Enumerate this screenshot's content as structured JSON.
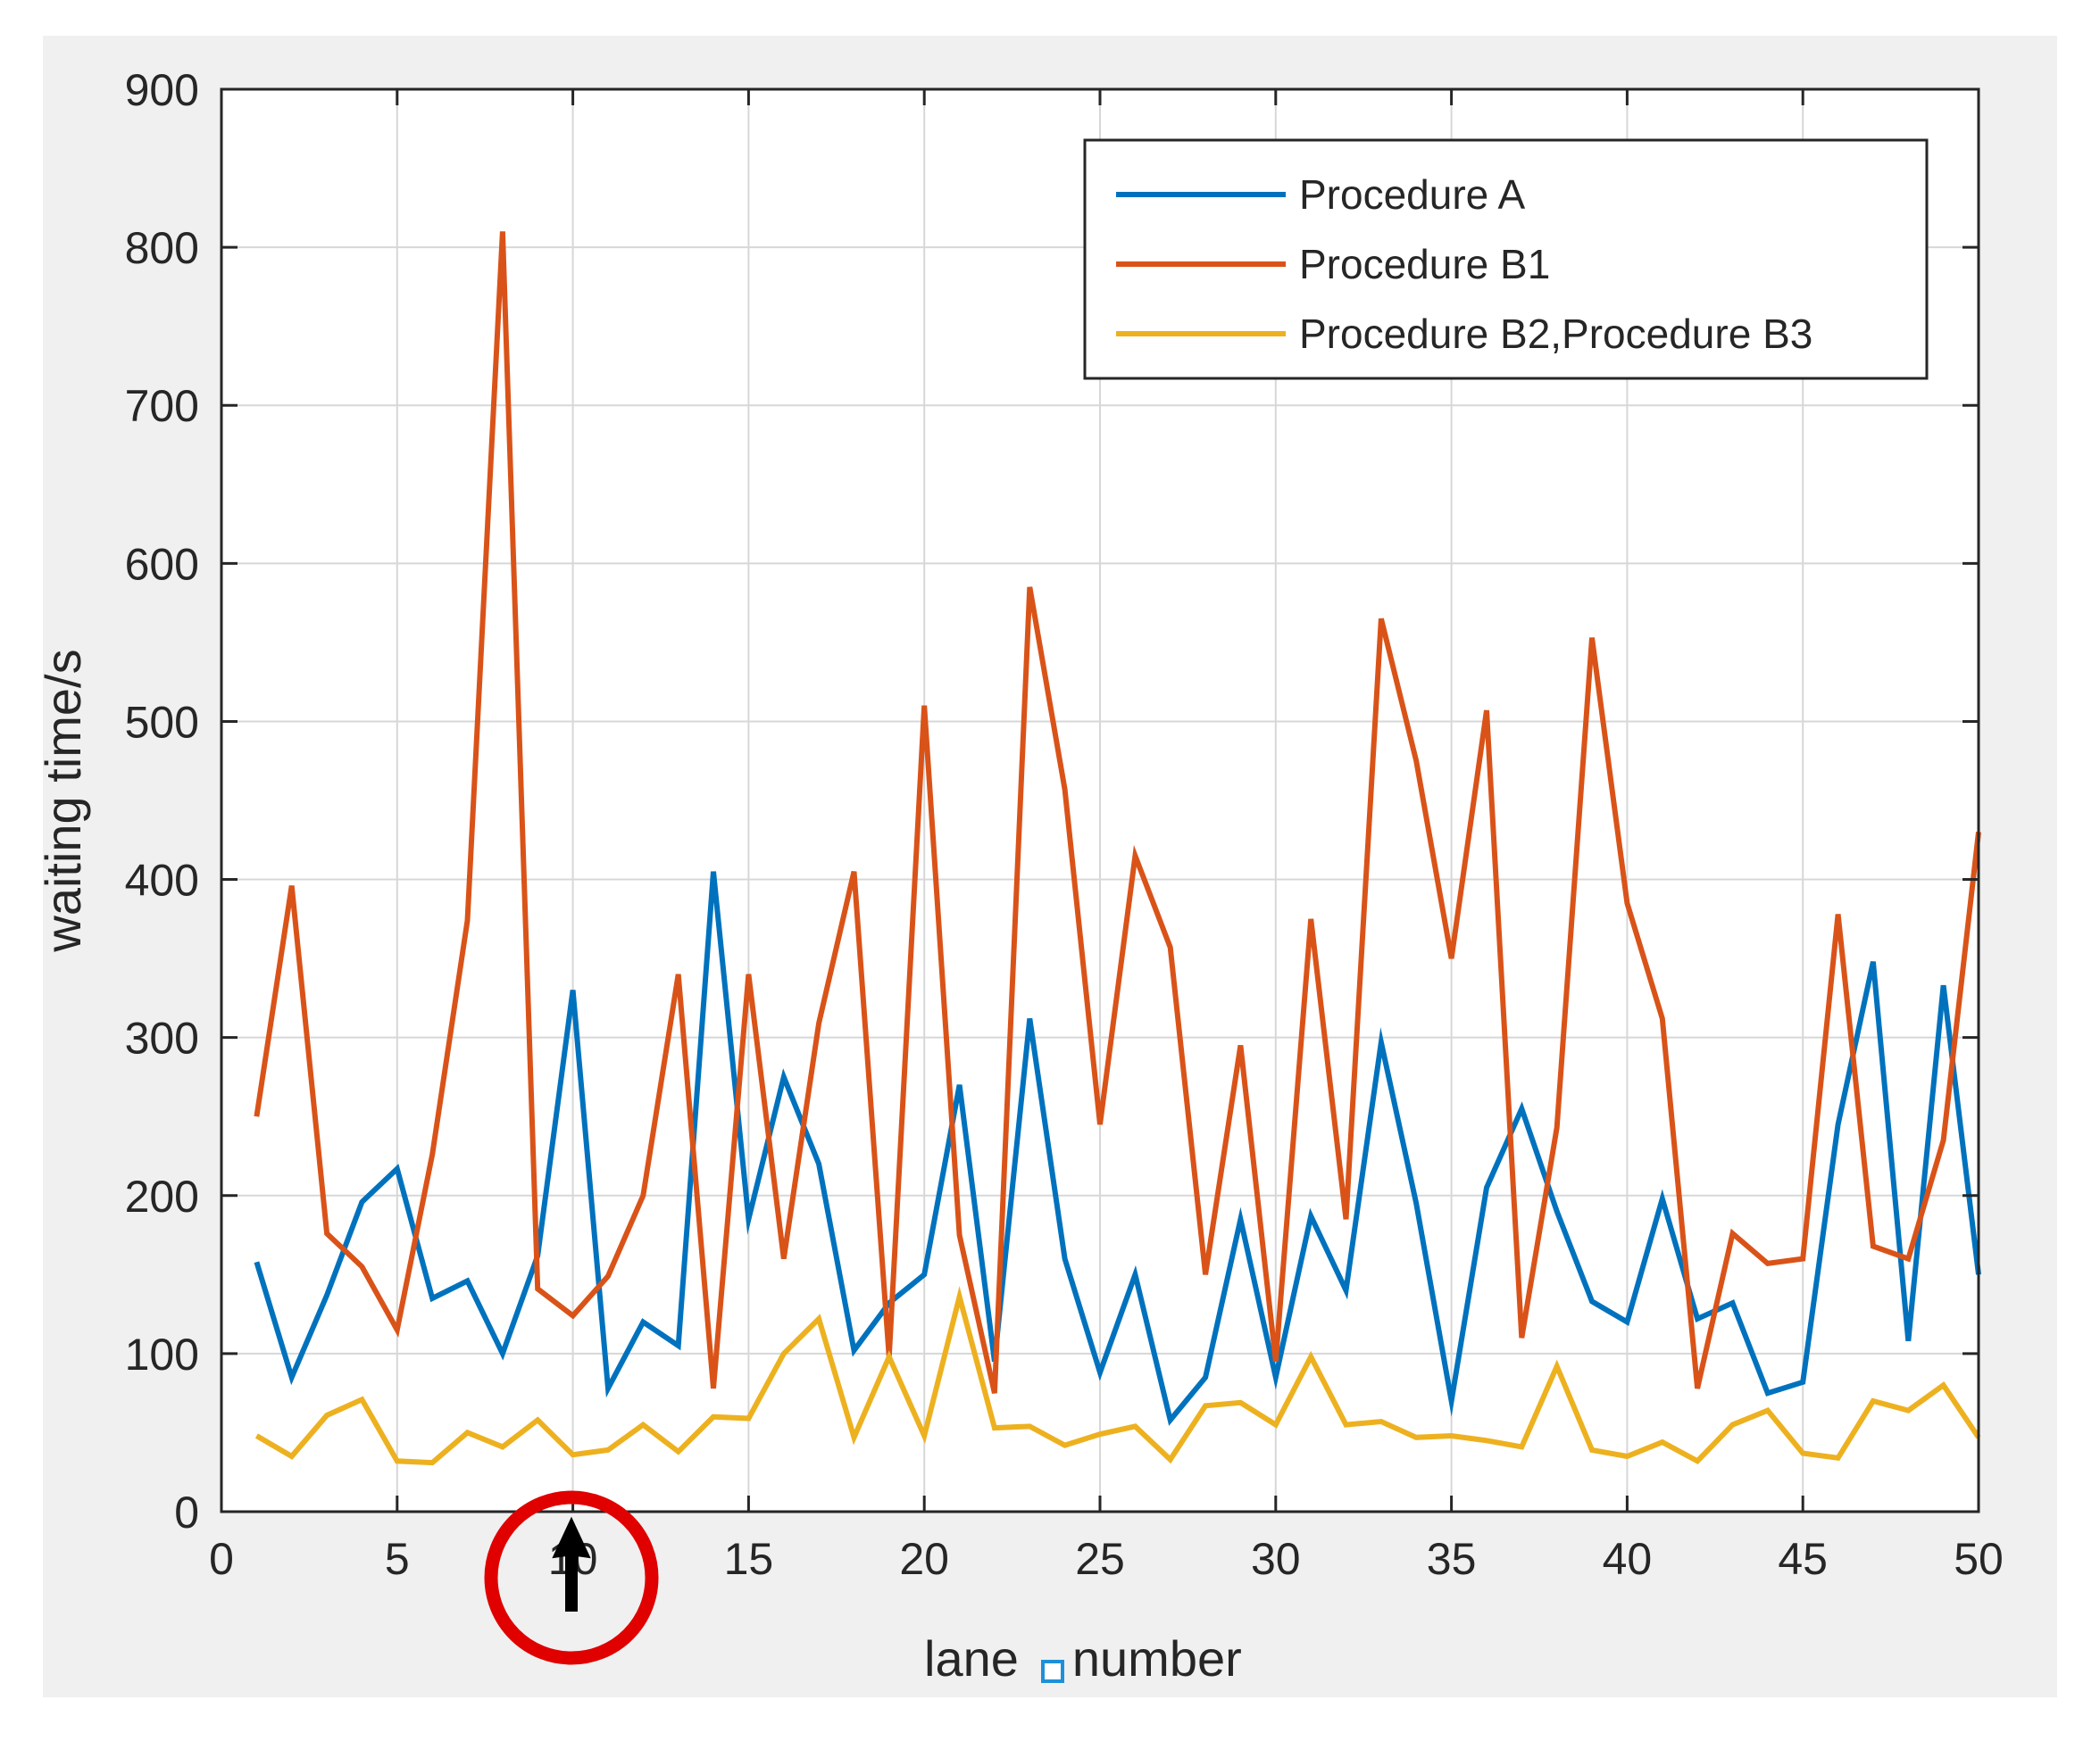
{
  "chart_data": {
    "type": "line",
    "title": "",
    "xlabel": "lane",
    "xlabel_suffix": "number",
    "ylabel": "waiting time/s",
    "xlim": [
      0,
      50
    ],
    "ylim": [
      0,
      900
    ],
    "x_ticks": [
      0,
      5,
      10,
      15,
      20,
      25,
      30,
      35,
      40,
      45,
      50
    ],
    "y_ticks": [
      0,
      100,
      200,
      300,
      400,
      500,
      600,
      700,
      800,
      900
    ],
    "grid": true,
    "legend_location": "top-right",
    "x": [
      1,
      2,
      3,
      4,
      5,
      6,
      7,
      8,
      9,
      10,
      11,
      12,
      13,
      14,
      15,
      16,
      17,
      18,
      19,
      20,
      21,
      22,
      23,
      24,
      25,
      26,
      27,
      28,
      29,
      30,
      31,
      32,
      33,
      34,
      35,
      36,
      37,
      38,
      39,
      40,
      41,
      42,
      43,
      44,
      45,
      46,
      47,
      48,
      49,
      50
    ],
    "series": [
      {
        "name": "Procedure A",
        "color": "#0072BD",
        "values": [
          158,
          85,
          137,
          196,
          217,
          135,
          146,
          100,
          162,
          330,
          78,
          120,
          105,
          405,
          185,
          275,
          220,
          102,
          132,
          150,
          270,
          95,
          312,
          160,
          88,
          150,
          58,
          85,
          185,
          85,
          187,
          140,
          297,
          195,
          70,
          205,
          255,
          190,
          133,
          120,
          198,
          122,
          132,
          75,
          82,
          245,
          348,
          108,
          333,
          150
        ]
      },
      {
        "name": "Procedure B1",
        "color": "#D95319",
        "values": [
          250,
          396,
          176,
          155,
          115,
          226,
          374,
          810,
          141,
          124,
          149,
          200,
          340,
          78,
          340,
          160,
          309,
          405,
          98,
          510,
          175,
          75,
          585,
          457,
          245,
          415,
          357,
          150,
          295,
          95,
          375,
          185,
          565,
          475,
          350,
          507,
          110,
          243,
          553,
          385,
          312,
          78,
          176,
          157,
          160,
          378,
          168,
          160,
          235,
          430
        ]
      },
      {
        "name": "Procedure B2,Procedure B3",
        "color": "#EDB120",
        "values": [
          48,
          35,
          61,
          71,
          32,
          31,
          50,
          41,
          58,
          36,
          39,
          55,
          38,
          60,
          59,
          100,
          122,
          47,
          98,
          48,
          136,
          53,
          54,
          42,
          49,
          54,
          33,
          67,
          69,
          55,
          98,
          55,
          57,
          47,
          48,
          45,
          41,
          92,
          39,
          35,
          44,
          32,
          55,
          64,
          37,
          34,
          70,
          64,
          80,
          47
        ]
      }
    ]
  },
  "annotations": {
    "cursor_icon": "arrow-cursor-icon",
    "highlight_circle_color": "#E00000",
    "xlabel_marker": "text-cursor-marker"
  }
}
